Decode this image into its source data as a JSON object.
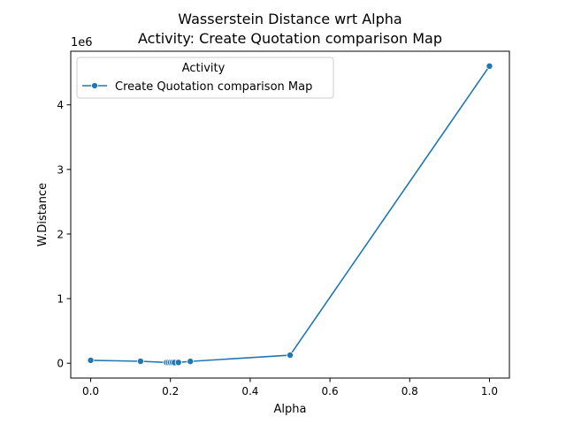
{
  "chart_data": {
    "type": "line",
    "title": "Wasserstein Distance wrt Alpha",
    "subtitle": "Activity: Create Quotation comparison Map",
    "xlabel": "Alpha",
    "ylabel": "W.Distance",
    "y_offset_label": "1e6",
    "xlim": [
      -0.05,
      1.05
    ],
    "ylim": [
      -0.23,
      4.83
    ],
    "y_scale_factor": 1000000,
    "x_ticks": [
      0.0,
      0.2,
      0.4,
      0.6,
      0.8,
      1.0
    ],
    "x_tick_labels": [
      "0.0",
      "0.2",
      "0.4",
      "0.6",
      "0.8",
      "1.0"
    ],
    "y_ticks": [
      0,
      1,
      2,
      3,
      4
    ],
    "y_tick_labels": [
      "0",
      "1",
      "2",
      "3",
      "4"
    ],
    "grid": false,
    "legend": {
      "title": "Activity",
      "placement": "top-left"
    },
    "series": [
      {
        "name": "Create Quotation comparison Map",
        "color": "#1f77b4",
        "x": [
          0.0,
          0.125,
          0.19,
          0.195,
          0.2,
          0.205,
          0.21,
          0.22,
          0.25,
          0.5,
          1.0
        ],
        "y": [
          0.045,
          0.03,
          0.012,
          0.012,
          0.012,
          0.012,
          0.01,
          0.012,
          0.028,
          0.125,
          4.6
        ]
      }
    ]
  }
}
